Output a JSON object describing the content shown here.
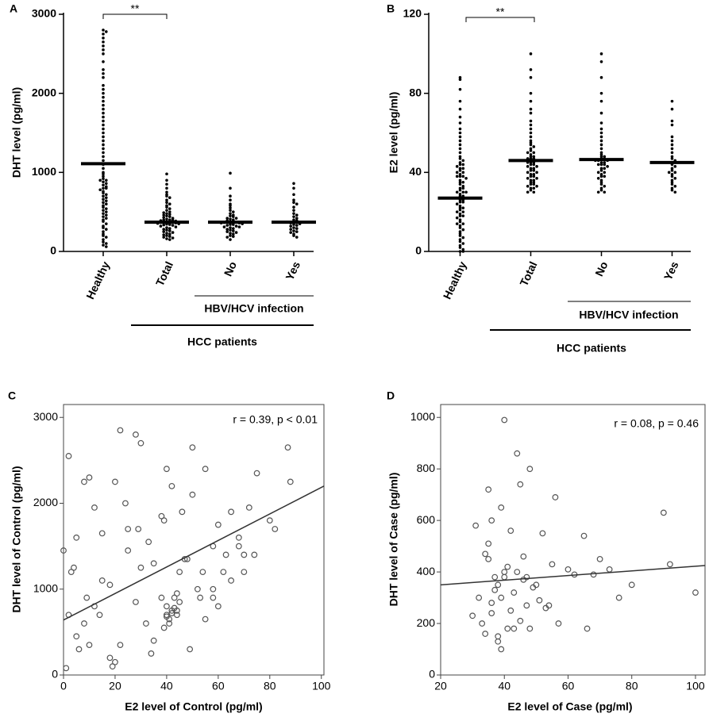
{
  "chart_data": [
    {
      "type": "strip",
      "label": "A",
      "ylabel": "DHT level (pg/ml)",
      "categories": [
        "Healthy",
        "Total",
        "No",
        "Yes"
      ],
      "values": [
        [
          2800,
          2780,
          2750,
          2700,
          2650,
          2600,
          2550,
          2500,
          2400,
          2300,
          2250,
          2200,
          2100,
          2050,
          2000,
          1950,
          1900,
          1850,
          1800,
          1750,
          1700,
          1650,
          1600,
          1550,
          1500,
          1450,
          1400,
          1350,
          1300,
          1250,
          1200,
          1150,
          1100,
          1050,
          1000,
          980,
          950,
          920,
          900,
          880,
          860,
          840,
          820,
          800,
          780,
          760,
          740,
          720,
          700,
          680,
          660,
          640,
          620,
          600,
          580,
          560,
          540,
          520,
          500,
          480,
          460,
          440,
          420,
          400,
          380,
          350,
          320,
          300,
          280,
          250,
          220,
          200,
          180,
          150,
          120,
          100,
          80,
          60,
          900,
          800
        ],
        [
          980,
          900,
          850,
          800,
          750,
          720,
          700,
          680,
          650,
          620,
          600,
          580,
          560,
          540,
          520,
          500,
          490,
          480,
          470,
          460,
          450,
          440,
          430,
          420,
          410,
          400,
          395,
          390,
          385,
          380,
          375,
          370,
          365,
          360,
          355,
          350,
          345,
          340,
          335,
          330,
          320,
          310,
          300,
          290,
          280,
          270,
          260,
          250,
          240,
          230,
          220,
          210,
          200,
          190,
          180,
          170,
          160,
          150,
          400,
          380
        ],
        [
          990,
          800,
          700,
          650,
          600,
          580,
          550,
          520,
          500,
          480,
          460,
          450,
          440,
          420,
          410,
          400,
          390,
          380,
          375,
          370,
          365,
          360,
          350,
          340,
          330,
          320,
          310,
          300,
          290,
          280,
          270,
          260,
          250,
          240,
          230,
          220,
          200,
          190,
          180,
          150,
          380,
          360,
          420,
          340,
          310
        ],
        [
          860,
          800,
          720,
          650,
          620,
          600,
          560,
          520,
          480,
          460,
          440,
          420,
          400,
          380,
          370,
          360,
          340,
          320,
          300,
          280,
          260,
          240,
          220,
          200,
          180,
          350,
          390,
          330,
          290,
          250
        ]
      ],
      "medians": [
        1110,
        370,
        370,
        370
      ],
      "ylim": [
        0,
        3000
      ],
      "yticks": [
        0,
        1000,
        2000,
        3000
      ],
      "significance": "**",
      "subgroup_label": "HBV/HCV infection",
      "group_label": "HCC patients",
      "color": "#000000"
    },
    {
      "type": "strip",
      "label": "B",
      "ylabel": "E2 level (pg/ml)",
      "categories": [
        "Healthy",
        "Total",
        "No",
        "Yes"
      ],
      "values": [
        [
          88,
          87,
          82,
          76,
          72,
          68,
          65,
          62,
          60,
          58,
          56,
          54,
          52,
          50,
          48,
          47,
          46,
          45,
          44,
          43,
          42,
          41,
          40,
          40,
          39,
          38,
          38,
          37,
          36,
          35,
          34,
          33,
          32,
          31,
          30,
          30,
          29,
          28,
          27,
          26,
          25,
          24,
          23,
          22,
          21,
          20,
          19,
          18,
          17,
          16,
          15,
          14,
          13,
          12,
          11,
          10,
          9,
          8,
          7,
          6,
          5,
          4,
          3,
          2,
          1,
          0,
          0,
          35,
          32,
          28,
          25,
          22,
          18,
          42,
          44,
          38,
          30,
          26,
          20,
          14
        ],
        [
          100,
          92,
          88,
          80,
          76,
          72,
          70,
          66,
          64,
          62,
          60,
          58,
          56,
          55,
          54,
          53,
          52,
          51,
          50,
          50,
          49,
          48,
          48,
          47,
          47,
          46,
          46,
          45,
          45,
          44,
          44,
          43,
          43,
          42,
          42,
          41,
          41,
          40,
          40,
          39,
          39,
          38,
          38,
          37,
          37,
          36,
          36,
          35,
          35,
          34,
          34,
          33,
          33,
          32,
          32,
          31,
          30,
          30,
          45,
          47
        ],
        [
          100,
          96,
          88,
          80,
          76,
          70,
          65,
          62,
          60,
          58,
          56,
          54,
          52,
          50,
          49,
          48,
          47,
          47,
          46,
          46,
          45,
          45,
          44,
          44,
          43,
          42,
          41,
          40,
          40,
          39,
          38,
          37,
          36,
          35,
          34,
          33,
          32,
          31,
          30,
          30,
          46,
          48,
          42,
          38,
          44
        ],
        [
          76,
          72,
          66,
          64,
          58,
          56,
          54,
          52,
          50,
          48,
          47,
          46,
          45,
          45,
          44,
          43,
          42,
          41,
          40,
          40,
          39,
          38,
          37,
          36,
          35,
          34,
          33,
          32,
          31,
          30
        ]
      ],
      "medians": [
        27,
        46,
        46.5,
        45
      ],
      "ylim": [
        0,
        120
      ],
      "yticks": [
        0,
        40,
        80,
        120
      ],
      "significance": "**",
      "subgroup_label": "HBV/HCV infection",
      "group_label": "HCC patients",
      "color": "#000000"
    },
    {
      "type": "scatter",
      "label": "C",
      "xlabel": "E2 level of Control (pg/ml)",
      "ylabel": "DHT level of Control (pg/ml)",
      "annotation": "r = 0.39, p < 0.01",
      "x": [
        0,
        1,
        2,
        3,
        5,
        6,
        8,
        10,
        12,
        15,
        18,
        20,
        22,
        25,
        28,
        30,
        32,
        35,
        38,
        40,
        40,
        41,
        42,
        43,
        44,
        45,
        41,
        42,
        43,
        40,
        39,
        44,
        46,
        48,
        50,
        52,
        55,
        58,
        60,
        62,
        65,
        68,
        70,
        72,
        75,
        80,
        82,
        87,
        88,
        58,
        5,
        10,
        15,
        20,
        25,
        30,
        35,
        40,
        45,
        50,
        55,
        60,
        65,
        70,
        2,
        8,
        12,
        18,
        22,
        28,
        33,
        38,
        42,
        47,
        53,
        58,
        63,
        68,
        74,
        4,
        9,
        14,
        19,
        24,
        29,
        34,
        39,
        44,
        49,
        54
      ],
      "y": [
        1450,
        80,
        2550,
        1200,
        450,
        300,
        600,
        2300,
        800,
        1650,
        200,
        2250,
        2850,
        1700,
        2800,
        1250,
        600,
        1300,
        900,
        700,
        800,
        650,
        750,
        900,
        700,
        850,
        600,
        720,
        780,
        680,
        550,
        950,
        1900,
        1350,
        2650,
        1000,
        2400,
        1500,
        800,
        1200,
        1900,
        1600,
        1400,
        1950,
        2350,
        1800,
        1700,
        2650,
        2250,
        900,
        1600,
        350,
        1100,
        150,
        1450,
        2700,
        400,
        2400,
        1200,
        2100,
        650,
        1750,
        1100,
        1200,
        700,
        2250,
        1950,
        1050,
        350,
        850,
        1550,
        1850,
        2200,
        1350,
        900,
        1000,
        1400,
        1500,
        1400,
        1250,
        900,
        700,
        100,
        2000,
        1700,
        250,
        1800,
        750,
        300,
        1200
      ],
      "fit": {
        "x": [
          0,
          101
        ],
        "y": [
          640,
          2200
        ]
      },
      "xlim": [
        0,
        101
      ],
      "ylim": [
        0,
        3150
      ],
      "xticks": [
        0,
        20,
        40,
        60,
        80,
        100
      ],
      "yticks": [
        0,
        1000,
        2000,
        3000
      ],
      "color": "#555555"
    },
    {
      "type": "scatter",
      "label": "D",
      "xlabel": "E2 level of Case (pg/ml)",
      "ylabel": "DHT level of Case (pg/ml)",
      "annotation": "r = 0.08, p = 0.46",
      "x": [
        30,
        31,
        32,
        33,
        34,
        35,
        35,
        36,
        36,
        37,
        37,
        38,
        38,
        39,
        39,
        40,
        40,
        41,
        41,
        42,
        42,
        43,
        44,
        44,
        45,
        45,
        46,
        47,
        47,
        48,
        48,
        49,
        50,
        51,
        52,
        53,
        54,
        55,
        56,
        57,
        60,
        62,
        65,
        66,
        68,
        70,
        73,
        76,
        80,
        90,
        92,
        100,
        34,
        35,
        36,
        38,
        39,
        40,
        43,
        46
      ],
      "y": [
        230,
        580,
        300,
        200,
        160,
        720,
        450,
        600,
        280,
        380,
        330,
        350,
        150,
        650,
        300,
        990,
        380,
        420,
        180,
        250,
        560,
        320,
        860,
        400,
        210,
        740,
        460,
        380,
        270,
        800,
        180,
        340,
        350,
        290,
        550,
        260,
        270,
        430,
        690,
        200,
        410,
        390,
        540,
        180,
        390,
        450,
        410,
        300,
        350,
        630,
        430,
        320,
        470,
        510,
        240,
        130,
        100,
        400,
        180,
        370
      ],
      "fit": {
        "x": [
          20,
          103
        ],
        "y": [
          350,
          425
        ]
      },
      "xlim": [
        20,
        103
      ],
      "ylim": [
        0,
        1050
      ],
      "xticks": [
        20,
        40,
        60,
        80,
        100
      ],
      "yticks": [
        0,
        200,
        400,
        600,
        800,
        1000
      ],
      "color": "#555555"
    }
  ]
}
